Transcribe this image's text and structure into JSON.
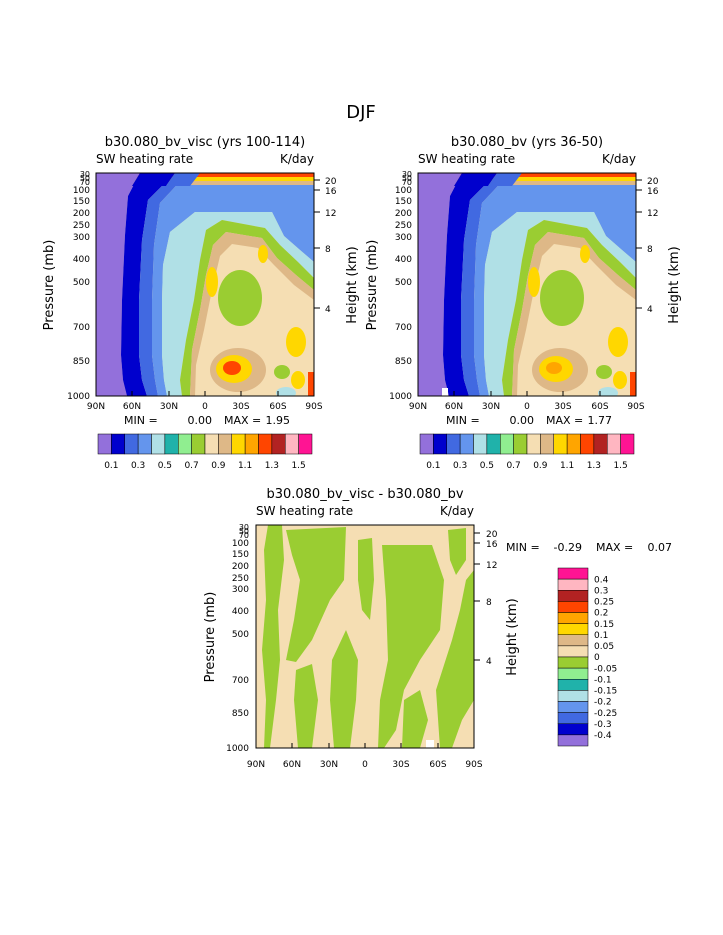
{
  "page_title": "DJF",
  "colors": {
    "abs_scale": [
      "#9370DB",
      "#0000CD",
      "#4169E1",
      "#6495ED",
      "#B0E0E6",
      "#20B2AA",
      "#90EE90",
      "#9ACD32",
      "#F5DEB3",
      "#DEB887",
      "#FFD700",
      "#FFA500",
      "#FF4500",
      "#B22222",
      "#FFB6C1",
      "#FF1493"
    ],
    "diff_scale": [
      "#FF1493",
      "#FFB6C1",
      "#B22222",
      "#FF4500",
      "#FFA500",
      "#FFD700",
      "#DEB887",
      "#F5DEB3",
      "#9ACD32",
      "#90EE90",
      "#20B2AA",
      "#B0E0E6",
      "#6495ED",
      "#4169E1",
      "#0000CD",
      "#9370DB"
    ]
  },
  "chart_data": [
    {
      "type": "heatmap",
      "title": "b30.080_bv_visc (yrs 100-114)",
      "left_label": "SW heating rate",
      "right_label": "K/day",
      "ylabel": "Pressure (mb)",
      "ylabel_right": "Height (km)",
      "x_ticks": [
        "90N",
        "60N",
        "30N",
        "0",
        "30S",
        "60S",
        "90S"
      ],
      "pressure_ticks": [
        "30",
        "50",
        "70",
        "100",
        "150",
        "200",
        "250",
        "300",
        "400",
        "500",
        "700",
        "850",
        "1000"
      ],
      "height_ticks": [
        "20",
        "16",
        "12",
        "8",
        "4"
      ],
      "min_label": "MIN =",
      "min_value": "0.00",
      "max_label": "MAX =",
      "max_value": "1.95",
      "legend_labels": [
        "0.1",
        "0.3",
        "0.5",
        "0.7",
        "0.9",
        "1.1",
        "1.3",
        "1.5"
      ]
    },
    {
      "type": "heatmap",
      "title": "b30.080_bv (yrs 36-50)",
      "left_label": "SW heating rate",
      "right_label": "K/day",
      "ylabel": "Pressure (mb)",
      "ylabel_right": "Height (km)",
      "x_ticks": [
        "90N",
        "60N",
        "30N",
        "0",
        "30S",
        "60S",
        "90S"
      ],
      "pressure_ticks": [
        "30",
        "50",
        "70",
        "100",
        "150",
        "200",
        "250",
        "300",
        "400",
        "500",
        "700",
        "850",
        "1000"
      ],
      "height_ticks": [
        "20",
        "16",
        "12",
        "8",
        "4"
      ],
      "min_label": "MIN =",
      "min_value": "0.00",
      "max_label": "MAX =",
      "max_value": "1.77",
      "legend_labels": [
        "0.1",
        "0.3",
        "0.5",
        "0.7",
        "0.9",
        "1.1",
        "1.3",
        "1.5"
      ]
    },
    {
      "type": "heatmap",
      "title": "b30.080_bv_visc - b30.080_bv",
      "left_label": "SW heating rate",
      "right_label": "K/day",
      "ylabel": "Pressure (mb)",
      "ylabel_right": "Height (km)",
      "x_ticks": [
        "90N",
        "60N",
        "30N",
        "0",
        "30S",
        "60S",
        "90S"
      ],
      "pressure_ticks": [
        "30",
        "50",
        "70",
        "100",
        "150",
        "200",
        "250",
        "300",
        "400",
        "500",
        "700",
        "850",
        "1000"
      ],
      "height_ticks": [
        "20",
        "16",
        "12",
        "8",
        "4"
      ],
      "min_label": "MIN =",
      "min_value": "-0.29",
      "max_label": "MAX =",
      "max_value": "0.07",
      "legend_labels": [
        "0.4",
        "0.3",
        "0.25",
        "0.2",
        "0.15",
        "0.1",
        "0.05",
        "0",
        "-0.05",
        "-0.1",
        "-0.15",
        "-0.2",
        "-0.25",
        "-0.3",
        "-0.4"
      ]
    }
  ]
}
